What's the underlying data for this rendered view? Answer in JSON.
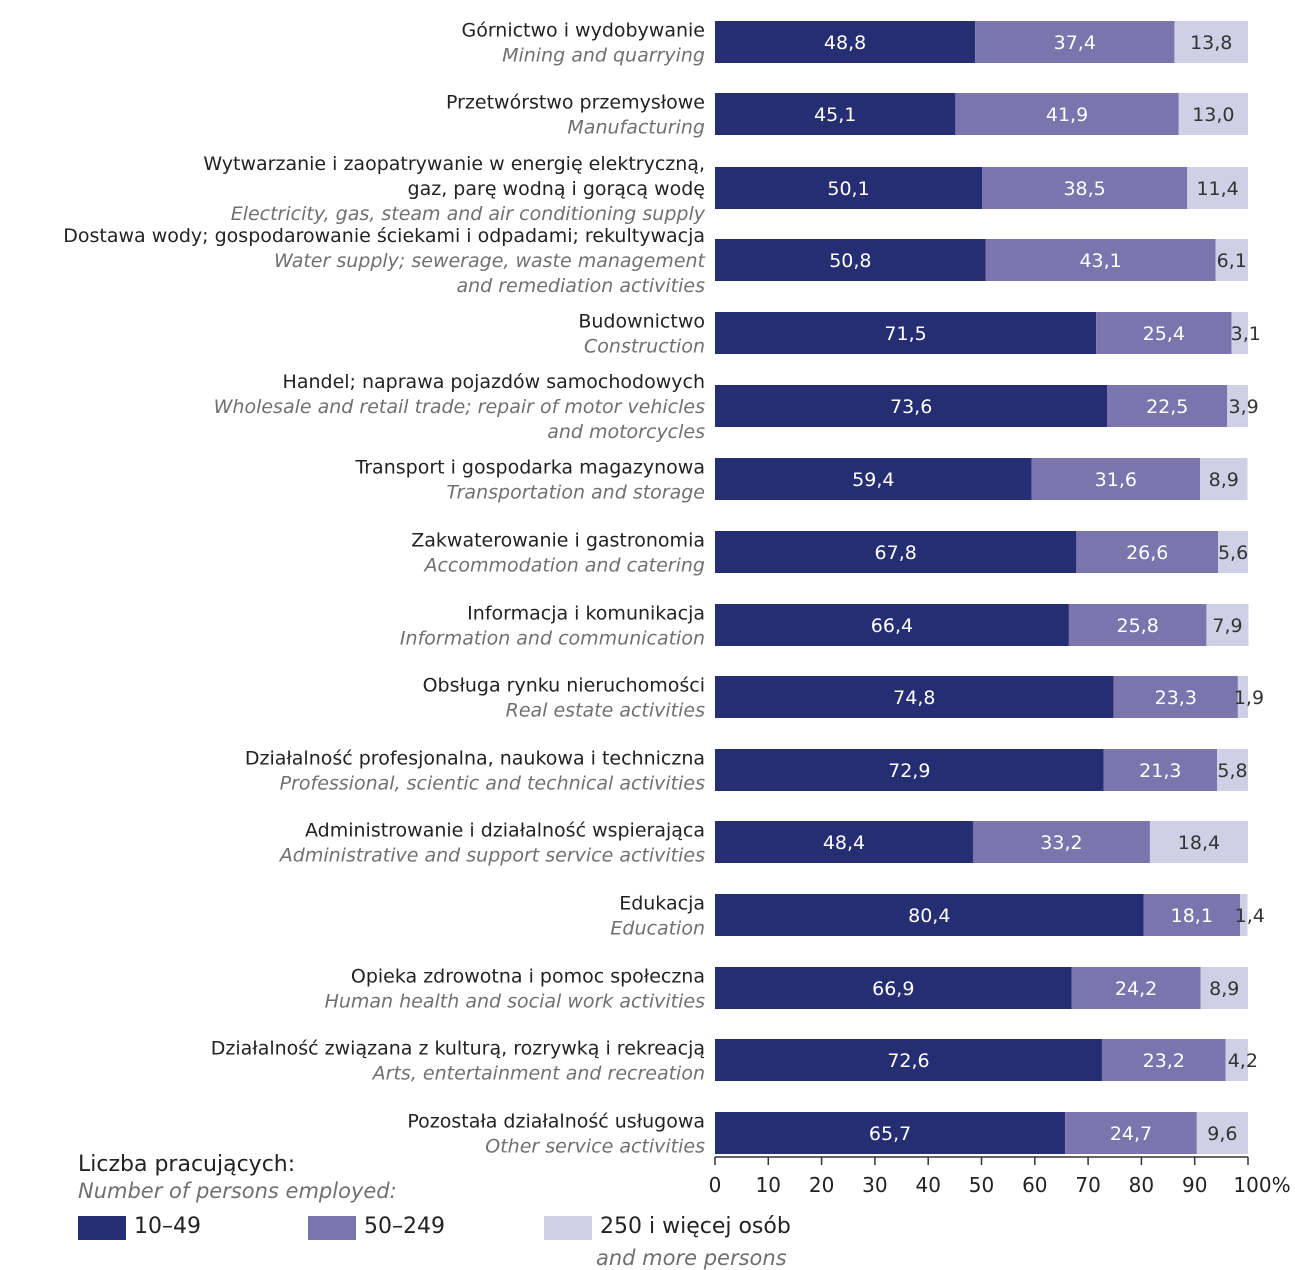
{
  "chart_data": {
    "type": "bar",
    "orientation": "horizontal",
    "stacked": true,
    "categories": [
      {
        "pl": "Górnictwo i wydobywanie",
        "en": "Mining and quarrying"
      },
      {
        "pl": "Przetwórstwo przemysłowe",
        "en": "Manufacturing"
      },
      {
        "pl": "Wytwarzanie i zaopatrywanie w energię elektryczną,\ngaz, parę wodną i gorącą wodę",
        "en": "Electricity, gas, steam and air conditioning supply"
      },
      {
        "pl": "Dostawa wody; gospodarowanie ściekami i odpadami; rekultywacja",
        "en": "Water supply; sewerage, waste management\nand remediation activities"
      },
      {
        "pl": "Budownictwo",
        "en": "Construction"
      },
      {
        "pl": "Handel; naprawa pojazdów samochodowych",
        "en": "Wholesale and retail trade; repair of motor vehicles\nand motorcycles"
      },
      {
        "pl": "Transport i gospodarka magazynowa",
        "en": "Transportation and storage"
      },
      {
        "pl": "Zakwaterowanie i gastronomia",
        "en": "Accommodation and catering"
      },
      {
        "pl": "Informacja i komunikacja",
        "en": "Information and communication"
      },
      {
        "pl": "Obsługa rynku nieruchomości",
        "en": "Real estate activities"
      },
      {
        "pl": "Działalność profesjonalna, naukowa i techniczna",
        "en": "Professional, scientic and technical activities"
      },
      {
        "pl": "Administrowanie i działalność wspierająca",
        "en": "Administrative and support service activities"
      },
      {
        "pl": "Edukacja",
        "en": "Education"
      },
      {
        "pl": "Opieka zdrowotna i pomoc społeczna",
        "en": "Human health and social work activities"
      },
      {
        "pl": "Działalność związana z kulturą, rozrywką i rekreacją",
        "en": "Arts, entertainment and recreation"
      },
      {
        "pl": "Pozostała działalność usługowa",
        "en": "Other service activities"
      }
    ],
    "series": [
      {
        "name": "10–49",
        "color": "#262e73",
        "values": [
          48.8,
          45.1,
          50.1,
          50.8,
          71.5,
          73.6,
          59.4,
          67.8,
          66.4,
          74.8,
          72.9,
          48.4,
          80.4,
          66.9,
          72.6,
          65.7
        ],
        "labels": [
          "48,8",
          "45,1",
          "50,1",
          "50,8",
          "71,5",
          "73,6",
          "59,4",
          "67,8",
          "66,4",
          "74,8",
          "72,9",
          "48,4",
          "80,4",
          "66,9",
          "72,6",
          "65,7"
        ]
      },
      {
        "name": "50–249",
        "color": "#7a76ad",
        "values": [
          37.4,
          41.9,
          38.5,
          43.1,
          25.4,
          22.5,
          31.6,
          26.6,
          25.8,
          23.3,
          21.3,
          33.2,
          18.1,
          24.2,
          23.2,
          24.7
        ],
        "labels": [
          "37,4",
          "41,9",
          "38,5",
          "43,1",
          "25,4",
          "22,5",
          "31,6",
          "26,6",
          "25,8",
          "23,3",
          "21,3",
          "33,2",
          "18,1",
          "24,2",
          "23,2",
          "24,7"
        ]
      },
      {
        "name": "250 i więcej osób",
        "color": "#cfcfe6",
        "values": [
          13.8,
          13.0,
          11.4,
          6.1,
          3.1,
          3.9,
          8.9,
          5.6,
          7.9,
          1.9,
          5.8,
          18.4,
          1.4,
          8.9,
          4.2,
          9.6
        ],
        "labels": [
          "13,8",
          "13,0",
          "11,4",
          "6,1",
          "3,1",
          "3,9",
          "8,9",
          "5,6",
          "7,9",
          "1,9",
          "5,8",
          "18,4",
          "1,4",
          "8,9",
          "4,2",
          "9,6"
        ]
      }
    ],
    "xlim": [
      0,
      100
    ],
    "xticks": [
      "0",
      "10",
      "20",
      "30",
      "40",
      "50",
      "60",
      "70",
      "80",
      "90",
      "100%"
    ],
    "grid": false,
    "legend": {
      "title": "Liczba pracujących:",
      "subtitle": "Number of persons employed:",
      "placement": "bottom-left",
      "items": [
        {
          "label": "10–49",
          "sublabel": ""
        },
        {
          "label": "50–249",
          "sublabel": ""
        },
        {
          "label": "250 i więcej osób",
          "sublabel": "and more persons"
        }
      ]
    }
  }
}
